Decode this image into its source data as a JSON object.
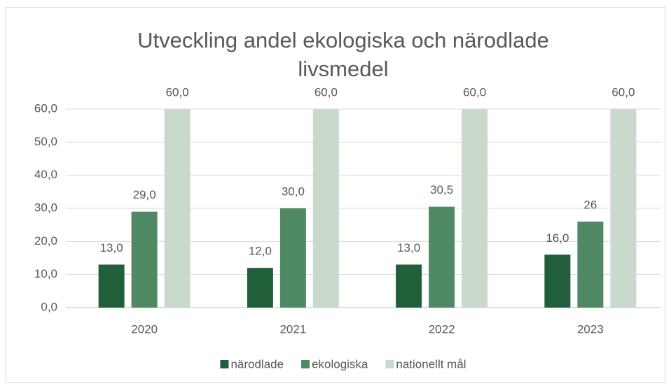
{
  "chart_data": {
    "type": "bar",
    "title": "Utveckling andel ekologiska och närodlade livsmedel",
    "categories": [
      "2020",
      "2021",
      "2022",
      "2023"
    ],
    "series": [
      {
        "name": "närodlade",
        "color": "#215f3a",
        "values": [
          13,
          12,
          13,
          16
        ],
        "value_labels": [
          "13,0",
          "12,0",
          "13,0",
          "16,0"
        ]
      },
      {
        "name": "ekologiska",
        "color": "#4f8a65",
        "values": [
          29,
          30,
          30.5,
          26
        ],
        "value_labels": [
          "29,0",
          "30,0",
          "30,5",
          "26"
        ]
      },
      {
        "name": "nationellt mål",
        "color": "#c9dacc",
        "values": [
          60,
          60,
          60,
          60
        ],
        "value_labels": [
          "60,0",
          "60,0",
          "60,0",
          "60,0"
        ]
      }
    ],
    "ylim": [
      0,
      60
    ],
    "yticks": [
      {
        "value": 0,
        "label": "0,0"
      },
      {
        "value": 10,
        "label": "10,0"
      },
      {
        "value": 20,
        "label": "20,0"
      },
      {
        "value": 30,
        "label": "30,0"
      },
      {
        "value": 40,
        "label": "40,0"
      },
      {
        "value": 50,
        "label": "50,0"
      },
      {
        "value": 60,
        "label": "60,0"
      }
    ],
    "grid": true,
    "legend": "bottom"
  }
}
